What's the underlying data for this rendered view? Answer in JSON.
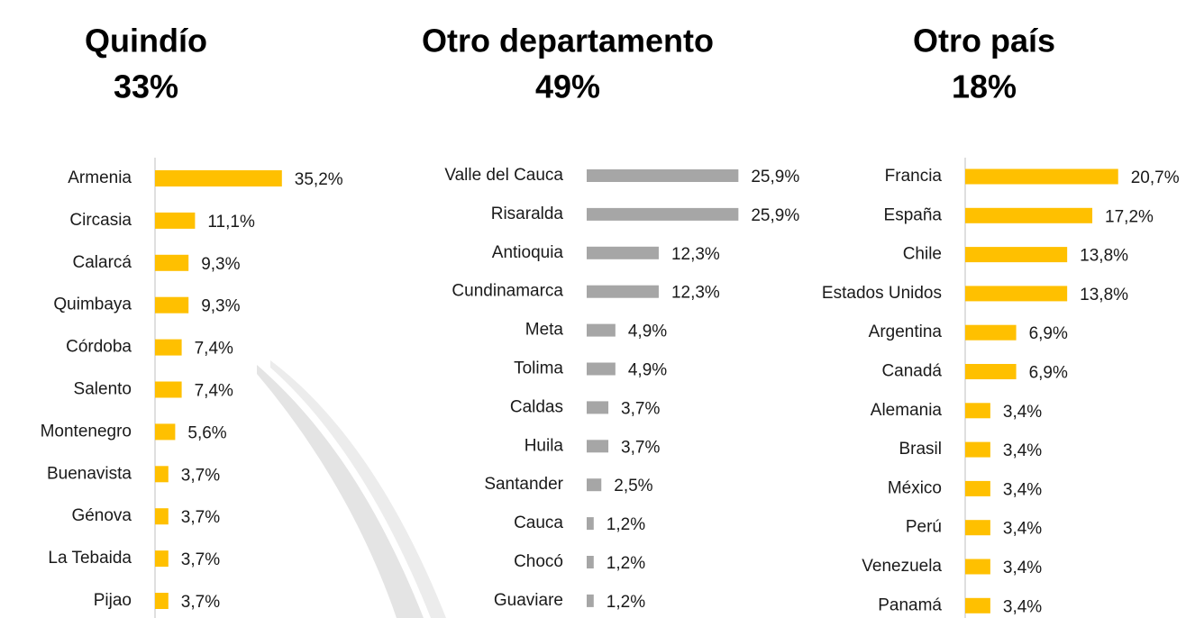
{
  "chart_data": [
    {
      "type": "bar",
      "orientation": "horizontal",
      "title": "Quindío",
      "subtitle": "33%",
      "color": "#FFC000",
      "axis_line": true,
      "xlim": [
        0,
        40
      ],
      "categories": [
        "Armenia",
        "Circasia",
        "Calarcá",
        "Quimbaya",
        "Córdoba",
        "Salento",
        "Montenegro",
        "Buenavista",
        "Génova",
        "La Tebaida",
        "Pijao"
      ],
      "values": [
        35.2,
        11.1,
        9.3,
        9.3,
        7.4,
        7.4,
        5.6,
        3.7,
        3.7,
        3.7,
        3.7
      ],
      "value_labels": [
        "35,2%",
        "11,1%",
        "9,3%",
        "9,3%",
        "7,4%",
        "7,4%",
        "5,6%",
        "3,7%",
        "3,7%",
        "3,7%",
        "3,7%"
      ]
    },
    {
      "type": "bar",
      "orientation": "horizontal",
      "title": "Otro departamento",
      "subtitle": "49%",
      "color": "#A6A6A6",
      "axis_line": false,
      "xlim": [
        0,
        30
      ],
      "categories": [
        "Valle del Cauca",
        "Risaralda",
        "Antioquia",
        "Cundinamarca",
        "Meta",
        "Tolima",
        "Caldas",
        "Huila",
        "Santander",
        "Cauca",
        "Chocó",
        "Guaviare"
      ],
      "values": [
        25.9,
        25.9,
        12.3,
        12.3,
        4.9,
        4.9,
        3.7,
        3.7,
        2.5,
        1.2,
        1.2,
        1.2
      ],
      "value_labels": [
        "25,9%",
        "25,9%",
        "12,3%",
        "12,3%",
        "4,9%",
        "4,9%",
        "3,7%",
        "3,7%",
        "2,5%",
        "1,2%",
        "1,2%",
        "1,2%"
      ]
    },
    {
      "type": "bar",
      "orientation": "horizontal",
      "title": "Otro país",
      "subtitle": "18%",
      "color": "#FFC000",
      "axis_line": true,
      "xlim": [
        0,
        25
      ],
      "categories": [
        "Francia",
        "España",
        "Chile",
        "Estados Unidos",
        "Argentina",
        "Canadá",
        "Alemania",
        "Brasil",
        "México",
        "Perú",
        "Venezuela",
        "Panamá"
      ],
      "values": [
        20.7,
        17.2,
        13.8,
        13.8,
        6.9,
        6.9,
        3.4,
        3.4,
        3.4,
        3.4,
        3.4,
        3.4
      ],
      "value_labels": [
        "20,7%",
        "17,2%",
        "13,8%",
        "13,8%",
        "6,9%",
        "6,9%",
        "3,4%",
        "3,4%",
        "3,4%",
        "3,4%",
        "3,4%",
        "3,4%"
      ]
    }
  ]
}
